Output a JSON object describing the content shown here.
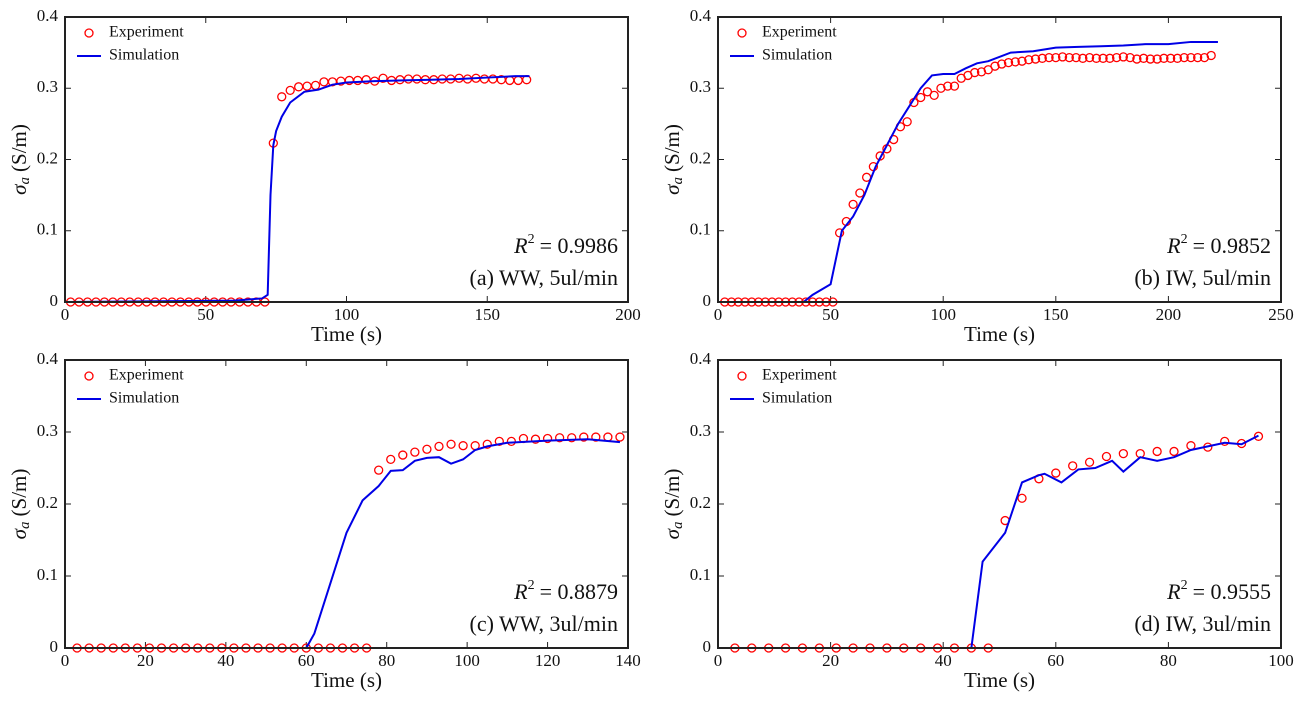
{
  "chart_data": [
    {
      "type": "line",
      "legend": "upper left",
      "xlabel": "Time (s)",
      "ylabel": {
        "base": "σ",
        "sub": "a",
        "rest": "(S/m)"
      },
      "annotation": {
        "base": "R",
        "sup": "2",
        "rest": "= 0.9986"
      },
      "subtitle": "(a) WW, 5ul/min",
      "xlim": [
        0,
        200
      ],
      "xticks": [
        0,
        50,
        100,
        150,
        200
      ],
      "ylim": [
        0,
        0.4
      ],
      "yticks": [
        0,
        0.1,
        0.2,
        0.3,
        0.4
      ],
      "series": [
        {
          "name": "Experiment",
          "color": "#ff0000",
          "style": "marker",
          "x": [
            2,
            5,
            8,
            11,
            14,
            17,
            20,
            23,
            26,
            29,
            32,
            35,
            38,
            41,
            44,
            47,
            50,
            53,
            56,
            59,
            62,
            65,
            68,
            71,
            74,
            77,
            80,
            83,
            86,
            89,
            92,
            95,
            98,
            101,
            104,
            107,
            110,
            113,
            116,
            119,
            122,
            125,
            128,
            131,
            134,
            137,
            140,
            143,
            146,
            149,
            152,
            155,
            158,
            161,
            164
          ],
          "values": [
            0,
            0,
            0,
            0,
            0,
            0,
            0,
            0,
            0,
            0,
            0,
            0,
            0,
            0,
            0,
            0,
            0,
            0,
            0,
            0,
            0,
            0,
            0,
            0,
            0.223,
            0.288,
            0.297,
            0.302,
            0.303,
            0.304,
            0.309,
            0.309,
            0.31,
            0.311,
            0.311,
            0.312,
            0.31,
            0.314,
            0.311,
            0.312,
            0.313,
            0.313,
            0.312,
            0.312,
            0.313,
            0.313,
            0.314,
            0.313,
            0.314,
            0.313,
            0.313,
            0.312,
            0.311,
            0.311,
            0.312
          ]
        },
        {
          "name": "Simulation",
          "color": "#0000e6",
          "style": "line",
          "x": [
            0,
            60,
            70,
            72,
            73,
            74,
            75,
            77,
            80,
            85,
            90,
            95,
            100,
            110,
            120,
            130,
            140,
            150,
            160,
            165
          ],
          "values": [
            0,
            0.002,
            0.005,
            0.01,
            0.15,
            0.22,
            0.24,
            0.26,
            0.28,
            0.295,
            0.298,
            0.305,
            0.308,
            0.31,
            0.311,
            0.312,
            0.313,
            0.315,
            0.317,
            0.317
          ]
        }
      ]
    },
    {
      "type": "line",
      "legend": "upper left",
      "xlabel": "Time (s)",
      "ylabel": {
        "base": "σ",
        "sub": "a",
        "rest": "(S/m)"
      },
      "annotation": {
        "base": "R",
        "sup": "2",
        "rest": "= 0.9852"
      },
      "subtitle": "(b) IW, 5ul/min",
      "xlim": [
        0,
        250
      ],
      "xticks": [
        0,
        50,
        100,
        150,
        200,
        250
      ],
      "ylim": [
        0,
        0.4
      ],
      "yticks": [
        0,
        0.1,
        0.2,
        0.3,
        0.4
      ],
      "series": [
        {
          "name": "Experiment",
          "color": "#ff0000",
          "style": "marker",
          "x": [
            3,
            6,
            9,
            12,
            15,
            18,
            21,
            24,
            27,
            30,
            33,
            36,
            39,
            42,
            45,
            48,
            51,
            54,
            57,
            60,
            63,
            66,
            69,
            72,
            75,
            78,
            81,
            84,
            87,
            90,
            93,
            96,
            99,
            102,
            105,
            108,
            111,
            114,
            117,
            120,
            123,
            126,
            129,
            132,
            135,
            138,
            141,
            144,
            147,
            150,
            153,
            156,
            159,
            162,
            165,
            168,
            171,
            174,
            177,
            180,
            183,
            186,
            189,
            192,
            195,
            198,
            201,
            204,
            207,
            210,
            213,
            216,
            219
          ],
          "values": [
            0,
            0,
            0,
            0,
            0,
            0,
            0,
            0,
            0,
            0,
            0,
            0,
            0,
            0,
            0,
            0,
            0,
            0.097,
            0.113,
            0.137,
            0.153,
            0.175,
            0.19,
            0.205,
            0.215,
            0.228,
            0.246,
            0.253,
            0.28,
            0.287,
            0.295,
            0.29,
            0.3,
            0.303,
            0.303,
            0.314,
            0.318,
            0.322,
            0.323,
            0.326,
            0.331,
            0.334,
            0.336,
            0.337,
            0.338,
            0.34,
            0.341,
            0.342,
            0.343,
            0.343,
            0.344,
            0.343,
            0.343,
            0.342,
            0.343,
            0.342,
            0.342,
            0.342,
            0.343,
            0.344,
            0.343,
            0.341,
            0.342,
            0.341,
            0.341,
            0.342,
            0.342,
            0.342,
            0.343,
            0.343,
            0.343,
            0.343,
            0.346
          ]
        },
        {
          "name": "Simulation",
          "color": "#0000e6",
          "style": "line",
          "x": [
            0,
            38,
            42,
            50,
            55,
            60,
            65,
            70,
            75,
            80,
            85,
            90,
            95,
            100,
            105,
            110,
            115,
            120,
            130,
            140,
            150,
            160,
            170,
            180,
            190,
            200,
            210,
            222
          ],
          "values": [
            0,
            0,
            0.01,
            0.025,
            0.1,
            0.12,
            0.15,
            0.19,
            0.22,
            0.25,
            0.275,
            0.3,
            0.318,
            0.32,
            0.32,
            0.328,
            0.335,
            0.338,
            0.35,
            0.352,
            0.357,
            0.358,
            0.359,
            0.36,
            0.362,
            0.362,
            0.365,
            0.365
          ]
        }
      ]
    },
    {
      "type": "line",
      "legend": "upper left",
      "xlabel": "Time (s)",
      "ylabel": {
        "base": "σ",
        "sub": "a",
        "rest": "(S/m)"
      },
      "annotation": {
        "base": "R",
        "sup": "2",
        "rest": "= 0.8879"
      },
      "subtitle": "(c) WW, 3ul/min",
      "xlim": [
        0,
        140
      ],
      "xticks": [
        0,
        20,
        40,
        60,
        80,
        100,
        120,
        140
      ],
      "ylim": [
        0,
        0.4
      ],
      "yticks": [
        0,
        0.1,
        0.2,
        0.3,
        0.4
      ],
      "series": [
        {
          "name": "Experiment",
          "color": "#ff0000",
          "style": "marker",
          "x": [
            3,
            6,
            9,
            12,
            15,
            18,
            21,
            24,
            27,
            30,
            33,
            36,
            39,
            42,
            45,
            48,
            51,
            54,
            57,
            60,
            63,
            66,
            69,
            72,
            75,
            78,
            81,
            84,
            87,
            90,
            93,
            96,
            99,
            102,
            105,
            108,
            111,
            114,
            117,
            120,
            123,
            126,
            129,
            132,
            135,
            138
          ],
          "values": [
            0,
            0,
            0,
            0,
            0,
            0,
            0,
            0,
            0,
            0,
            0,
            0,
            0,
            0,
            0,
            0,
            0,
            0,
            0,
            0,
            0,
            0,
            0,
            0,
            0,
            0.247,
            0.262,
            0.268,
            0.272,
            0.276,
            0.28,
            0.283,
            0.281,
            0.281,
            0.283,
            0.287,
            0.287,
            0.291,
            0.29,
            0.291,
            0.292,
            0.292,
            0.293,
            0.293,
            0.293,
            0.293
          ]
        },
        {
          "name": "Simulation",
          "color": "#0000e6",
          "style": "line",
          "x": [
            0,
            60,
            62,
            66,
            70,
            74,
            78,
            81,
            84,
            87,
            90,
            93,
            96,
            99,
            102,
            105,
            110,
            120,
            130,
            138
          ],
          "values": [
            0,
            0,
            0.02,
            0.09,
            0.16,
            0.205,
            0.225,
            0.246,
            0.247,
            0.26,
            0.264,
            0.265,
            0.256,
            0.262,
            0.275,
            0.28,
            0.285,
            0.288,
            0.29,
            0.286
          ]
        }
      ]
    },
    {
      "type": "line",
      "legend": "upper left",
      "xlabel": "Time (s)",
      "ylabel": {
        "base": "σ",
        "sub": "a",
        "rest": "(S/m)"
      },
      "annotation": {
        "base": "R",
        "sup": "2",
        "rest": "= 0.9555"
      },
      "subtitle": "(d) IW, 3ul/min",
      "xlim": [
        0,
        100
      ],
      "xticks": [
        0,
        20,
        40,
        60,
        80,
        100
      ],
      "ylim": [
        0,
        0.4
      ],
      "yticks": [
        0,
        0.1,
        0.2,
        0.3,
        0.4
      ],
      "series": [
        {
          "name": "Experiment",
          "color": "#ff0000",
          "style": "marker",
          "x": [
            3,
            6,
            9,
            12,
            15,
            18,
            21,
            24,
            27,
            30,
            33,
            36,
            39,
            42,
            45,
            48,
            51,
            54,
            57,
            60,
            63,
            66,
            69,
            72,
            75,
            78,
            81,
            84,
            87,
            90,
            93,
            96
          ],
          "values": [
            0,
            0,
            0,
            0,
            0,
            0,
            0,
            0,
            0,
            0,
            0,
            0,
            0,
            0,
            0,
            0,
            0.177,
            0.208,
            0.235,
            0.243,
            0.253,
            0.258,
            0.266,
            0.27,
            0.27,
            0.273,
            0.273,
            0.281,
            0.279,
            0.287,
            0.284,
            0.294
          ]
        },
        {
          "name": "Simulation",
          "color": "#0000e6",
          "style": "line",
          "x": [
            0,
            45,
            47,
            51,
            54,
            57,
            58,
            61,
            64,
            67,
            70,
            72,
            75,
            78,
            81,
            84,
            87,
            90,
            93,
            96
          ],
          "values": [
            0,
            0,
            0.12,
            0.16,
            0.23,
            0.24,
            0.242,
            0.23,
            0.248,
            0.25,
            0.26,
            0.245,
            0.265,
            0.26,
            0.265,
            0.275,
            0.28,
            0.285,
            0.283,
            0.295
          ]
        }
      ]
    }
  ]
}
